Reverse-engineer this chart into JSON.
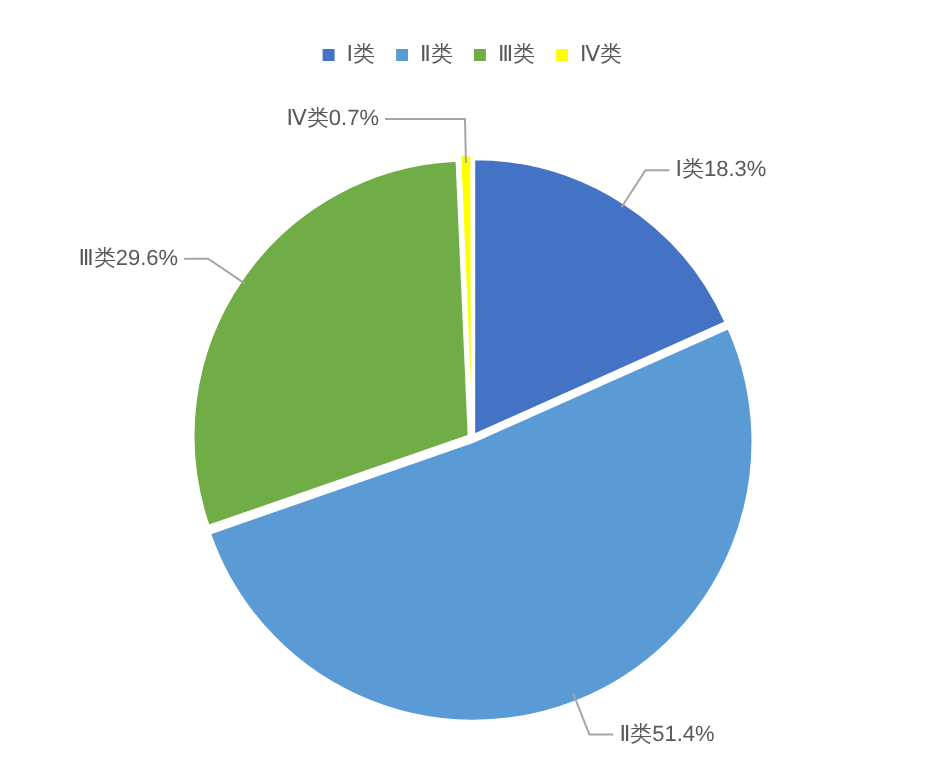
{
  "chart_data": {
    "type": "pie",
    "categories": [
      "Ⅰ类",
      "Ⅱ类",
      "Ⅲ类",
      "Ⅳ类"
    ],
    "values": [
      18.3,
      51.4,
      29.6,
      0.7
    ],
    "colors": [
      "#4472c4",
      "#5b9bd5",
      "#70ad47",
      "#ffff00"
    ],
    "value_labels": [
      "Ⅰ类18.3%",
      "Ⅱ类51.4%",
      "Ⅲ类29.6%",
      "Ⅳ类0.7%"
    ],
    "legend": "top"
  }
}
